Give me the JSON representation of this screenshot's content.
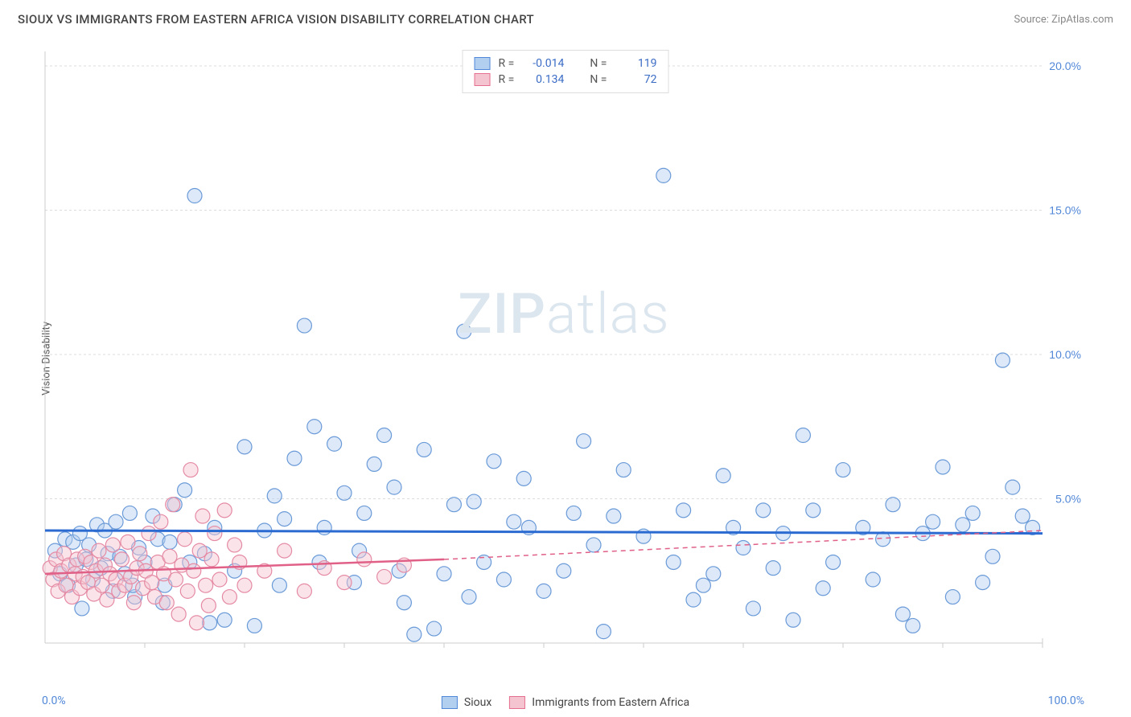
{
  "header": {
    "title": "SIOUX VS IMMIGRANTS FROM EASTERN AFRICA VISION DISABILITY CORRELATION CHART",
    "source_prefix": "Source: ",
    "source_name": "ZipAtlas.com"
  },
  "watermark": {
    "zip": "ZIP",
    "atlas": "atlas"
  },
  "ylabel": "Vision Disability",
  "chart": {
    "type": "scatter",
    "background_color": "#ffffff",
    "grid_color": "#dddddd",
    "axis_color": "#cccccc",
    "xlim": [
      0,
      100
    ],
    "ylim": [
      0,
      20.5
    ],
    "y_ticks": [
      5.0,
      10.0,
      15.0,
      20.0
    ],
    "y_tick_labels": [
      "5.0%",
      "10.0%",
      "15.0%",
      "20.0%"
    ],
    "x_tick_labels": {
      "min": "0.0%",
      "max": "100.0%"
    },
    "marker_radius": 9,
    "marker_stroke_width": 1.2,
    "fill_opacity": 0.45,
    "series": [
      {
        "name": "Sioux",
        "fill": "#b3cff0",
        "stroke": "#6a9ad8",
        "line_color": "#2b6bd1",
        "line_width": 3,
        "line_dash": "none",
        "R": "-0.014",
        "N": "119",
        "trend": {
          "x1": 0,
          "y1": 3.9,
          "x2": 100,
          "y2": 3.8
        },
        "trend_dash_extension": null,
        "points": [
          [
            1,
            3.2
          ],
          [
            1.5,
            2.4
          ],
          [
            2,
            3.6
          ],
          [
            2.3,
            2.0
          ],
          [
            2.8,
            3.5
          ],
          [
            3.1,
            2.7
          ],
          [
            3.5,
            3.8
          ],
          [
            3.7,
            1.2
          ],
          [
            4.1,
            2.9
          ],
          [
            4.4,
            3.4
          ],
          [
            4.8,
            2.2
          ],
          [
            5.2,
            4.1
          ],
          [
            5.6,
            2.6
          ],
          [
            6.0,
            3.9
          ],
          [
            6.3,
            3.1
          ],
          [
            6.8,
            1.8
          ],
          [
            7.1,
            4.2
          ],
          [
            7.5,
            3.0
          ],
          [
            8.0,
            2.4
          ],
          [
            8.5,
            4.5
          ],
          [
            9.0,
            1.6
          ],
          [
            9.4,
            3.3
          ],
          [
            10.0,
            2.8
          ],
          [
            10.8,
            4.4
          ],
          [
            11.3,
            3.6
          ],
          [
            12,
            2.0
          ],
          [
            13,
            4.8
          ],
          [
            14,
            5.3
          ],
          [
            15,
            15.5
          ],
          [
            16,
            3.1
          ],
          [
            17,
            4.0
          ],
          [
            18,
            0.8
          ],
          [
            19,
            2.5
          ],
          [
            20,
            6.8
          ],
          [
            21,
            0.6
          ],
          [
            22,
            3.9
          ],
          [
            23,
            5.1
          ],
          [
            24,
            4.3
          ],
          [
            25,
            6.4
          ],
          [
            26,
            11.0
          ],
          [
            27,
            7.5
          ],
          [
            28,
            4.0
          ],
          [
            29,
            6.9
          ],
          [
            30,
            5.2
          ],
          [
            31,
            2.1
          ],
          [
            32,
            4.5
          ],
          [
            33,
            6.2
          ],
          [
            34,
            7.2
          ],
          [
            35,
            5.4
          ],
          [
            36,
            1.4
          ],
          [
            37,
            0.3
          ],
          [
            38,
            6.7
          ],
          [
            39,
            0.5
          ],
          [
            40,
            2.4
          ],
          [
            41,
            4.8
          ],
          [
            42,
            10.8
          ],
          [
            43,
            4.9
          ],
          [
            44,
            2.8
          ],
          [
            45,
            6.3
          ],
          [
            46,
            2.2
          ],
          [
            47,
            4.2
          ],
          [
            48,
            5.7
          ],
          [
            50,
            1.8
          ],
          [
            52,
            2.5
          ],
          [
            54,
            7.0
          ],
          [
            55,
            3.4
          ],
          [
            56,
            0.4
          ],
          [
            57,
            4.4
          ],
          [
            58,
            6.0
          ],
          [
            60,
            3.7
          ],
          [
            62,
            16.2
          ],
          [
            63,
            2.8
          ],
          [
            64,
            4.6
          ],
          [
            65,
            1.5
          ],
          [
            66,
            2.0
          ],
          [
            68,
            5.8
          ],
          [
            69,
            4.0
          ],
          [
            70,
            3.3
          ],
          [
            71,
            1.2
          ],
          [
            72,
            4.6
          ],
          [
            73,
            2.6
          ],
          [
            74,
            3.8
          ],
          [
            76,
            7.2
          ],
          [
            77,
            4.6
          ],
          [
            78,
            1.9
          ],
          [
            79,
            2.8
          ],
          [
            80,
            6.0
          ],
          [
            82,
            4.0
          ],
          [
            83,
            2.2
          ],
          [
            84,
            3.6
          ],
          [
            85,
            4.8
          ],
          [
            86,
            1.0
          ],
          [
            87,
            0.6
          ],
          [
            88,
            3.8
          ],
          [
            89,
            4.2
          ],
          [
            90,
            6.1
          ],
          [
            91,
            1.6
          ],
          [
            92,
            4.1
          ],
          [
            93,
            4.5
          ],
          [
            94,
            2.1
          ],
          [
            95,
            3.0
          ],
          [
            96,
            9.8
          ],
          [
            97,
            5.4
          ],
          [
            98,
            4.4
          ],
          [
            99,
            4.0
          ],
          [
            12.5,
            3.5
          ],
          [
            14.5,
            2.8
          ],
          [
            8.8,
            2.0
          ],
          [
            11.8,
            1.4
          ],
          [
            16.5,
            0.7
          ],
          [
            23.5,
            2.0
          ],
          [
            27.5,
            2.8
          ],
          [
            31.5,
            3.2
          ],
          [
            35.5,
            2.5
          ],
          [
            42.5,
            1.6
          ],
          [
            48.5,
            4.0
          ],
          [
            53,
            4.5
          ],
          [
            67,
            2.4
          ],
          [
            75,
            0.8
          ]
        ]
      },
      {
        "name": "Immigrants from Eastern Africa",
        "fill": "#f5c4d1",
        "stroke": "#e58aa4",
        "line_color": "#e06088",
        "line_width": 2.5,
        "line_dash": "none",
        "R": "0.134",
        "N": "72",
        "trend": {
          "x1": 0,
          "y1": 2.4,
          "x2": 40,
          "y2": 2.9
        },
        "trend_dash_extension": {
          "x1": 40,
          "y1": 2.9,
          "x2": 100,
          "y2": 3.9,
          "dash": "6,5"
        },
        "points": [
          [
            0.5,
            2.6
          ],
          [
            0.8,
            2.2
          ],
          [
            1.1,
            2.9
          ],
          [
            1.3,
            1.8
          ],
          [
            1.6,
            2.5
          ],
          [
            1.9,
            3.1
          ],
          [
            2.1,
            2.0
          ],
          [
            2.4,
            2.7
          ],
          [
            2.7,
            1.6
          ],
          [
            3.0,
            2.4
          ],
          [
            3.2,
            2.9
          ],
          [
            3.5,
            1.9
          ],
          [
            3.8,
            2.3
          ],
          [
            4.0,
            3.0
          ],
          [
            4.3,
            2.1
          ],
          [
            4.6,
            2.8
          ],
          [
            4.9,
            1.7
          ],
          [
            5.1,
            2.5
          ],
          [
            5.4,
            3.2
          ],
          [
            5.7,
            2.0
          ],
          [
            6.0,
            2.7
          ],
          [
            6.2,
            1.5
          ],
          [
            6.5,
            2.4
          ],
          [
            6.8,
            3.4
          ],
          [
            7.1,
            2.2
          ],
          [
            7.4,
            1.8
          ],
          [
            7.7,
            2.9
          ],
          [
            8.0,
            2.0
          ],
          [
            8.3,
            3.5
          ],
          [
            8.6,
            2.3
          ],
          [
            8.9,
            1.4
          ],
          [
            9.2,
            2.6
          ],
          [
            9.5,
            3.1
          ],
          [
            9.8,
            1.9
          ],
          [
            10.1,
            2.5
          ],
          [
            10.4,
            3.8
          ],
          [
            10.7,
            2.1
          ],
          [
            11.0,
            1.6
          ],
          [
            11.3,
            2.8
          ],
          [
            11.6,
            4.2
          ],
          [
            11.9,
            2.4
          ],
          [
            12.2,
            1.4
          ],
          [
            12.5,
            3.0
          ],
          [
            12.8,
            4.8
          ],
          [
            13.1,
            2.2
          ],
          [
            13.4,
            1.0
          ],
          [
            13.7,
            2.7
          ],
          [
            14.0,
            3.6
          ],
          [
            14.3,
            1.8
          ],
          [
            14.6,
            6.0
          ],
          [
            14.9,
            2.5
          ],
          [
            15.2,
            0.7
          ],
          [
            15.5,
            3.2
          ],
          [
            15.8,
            4.4
          ],
          [
            16.1,
            2.0
          ],
          [
            16.4,
            1.3
          ],
          [
            16.7,
            2.9
          ],
          [
            17.0,
            3.8
          ],
          [
            17.5,
            2.2
          ],
          [
            18.0,
            4.6
          ],
          [
            18.5,
            1.6
          ],
          [
            19.0,
            3.4
          ],
          [
            19.5,
            2.8
          ],
          [
            20.0,
            2.0
          ],
          [
            22.0,
            2.5
          ],
          [
            24.0,
            3.2
          ],
          [
            26.0,
            1.8
          ],
          [
            28.0,
            2.6
          ],
          [
            30.0,
            2.1
          ],
          [
            32.0,
            2.9
          ],
          [
            34.0,
            2.3
          ],
          [
            36.0,
            2.7
          ]
        ]
      }
    ]
  },
  "top_legend": {
    "r_label": "R =",
    "n_label": "N ="
  },
  "bottom_legend": {
    "items": [
      "Sioux",
      "Immigrants from Eastern Africa"
    ]
  }
}
